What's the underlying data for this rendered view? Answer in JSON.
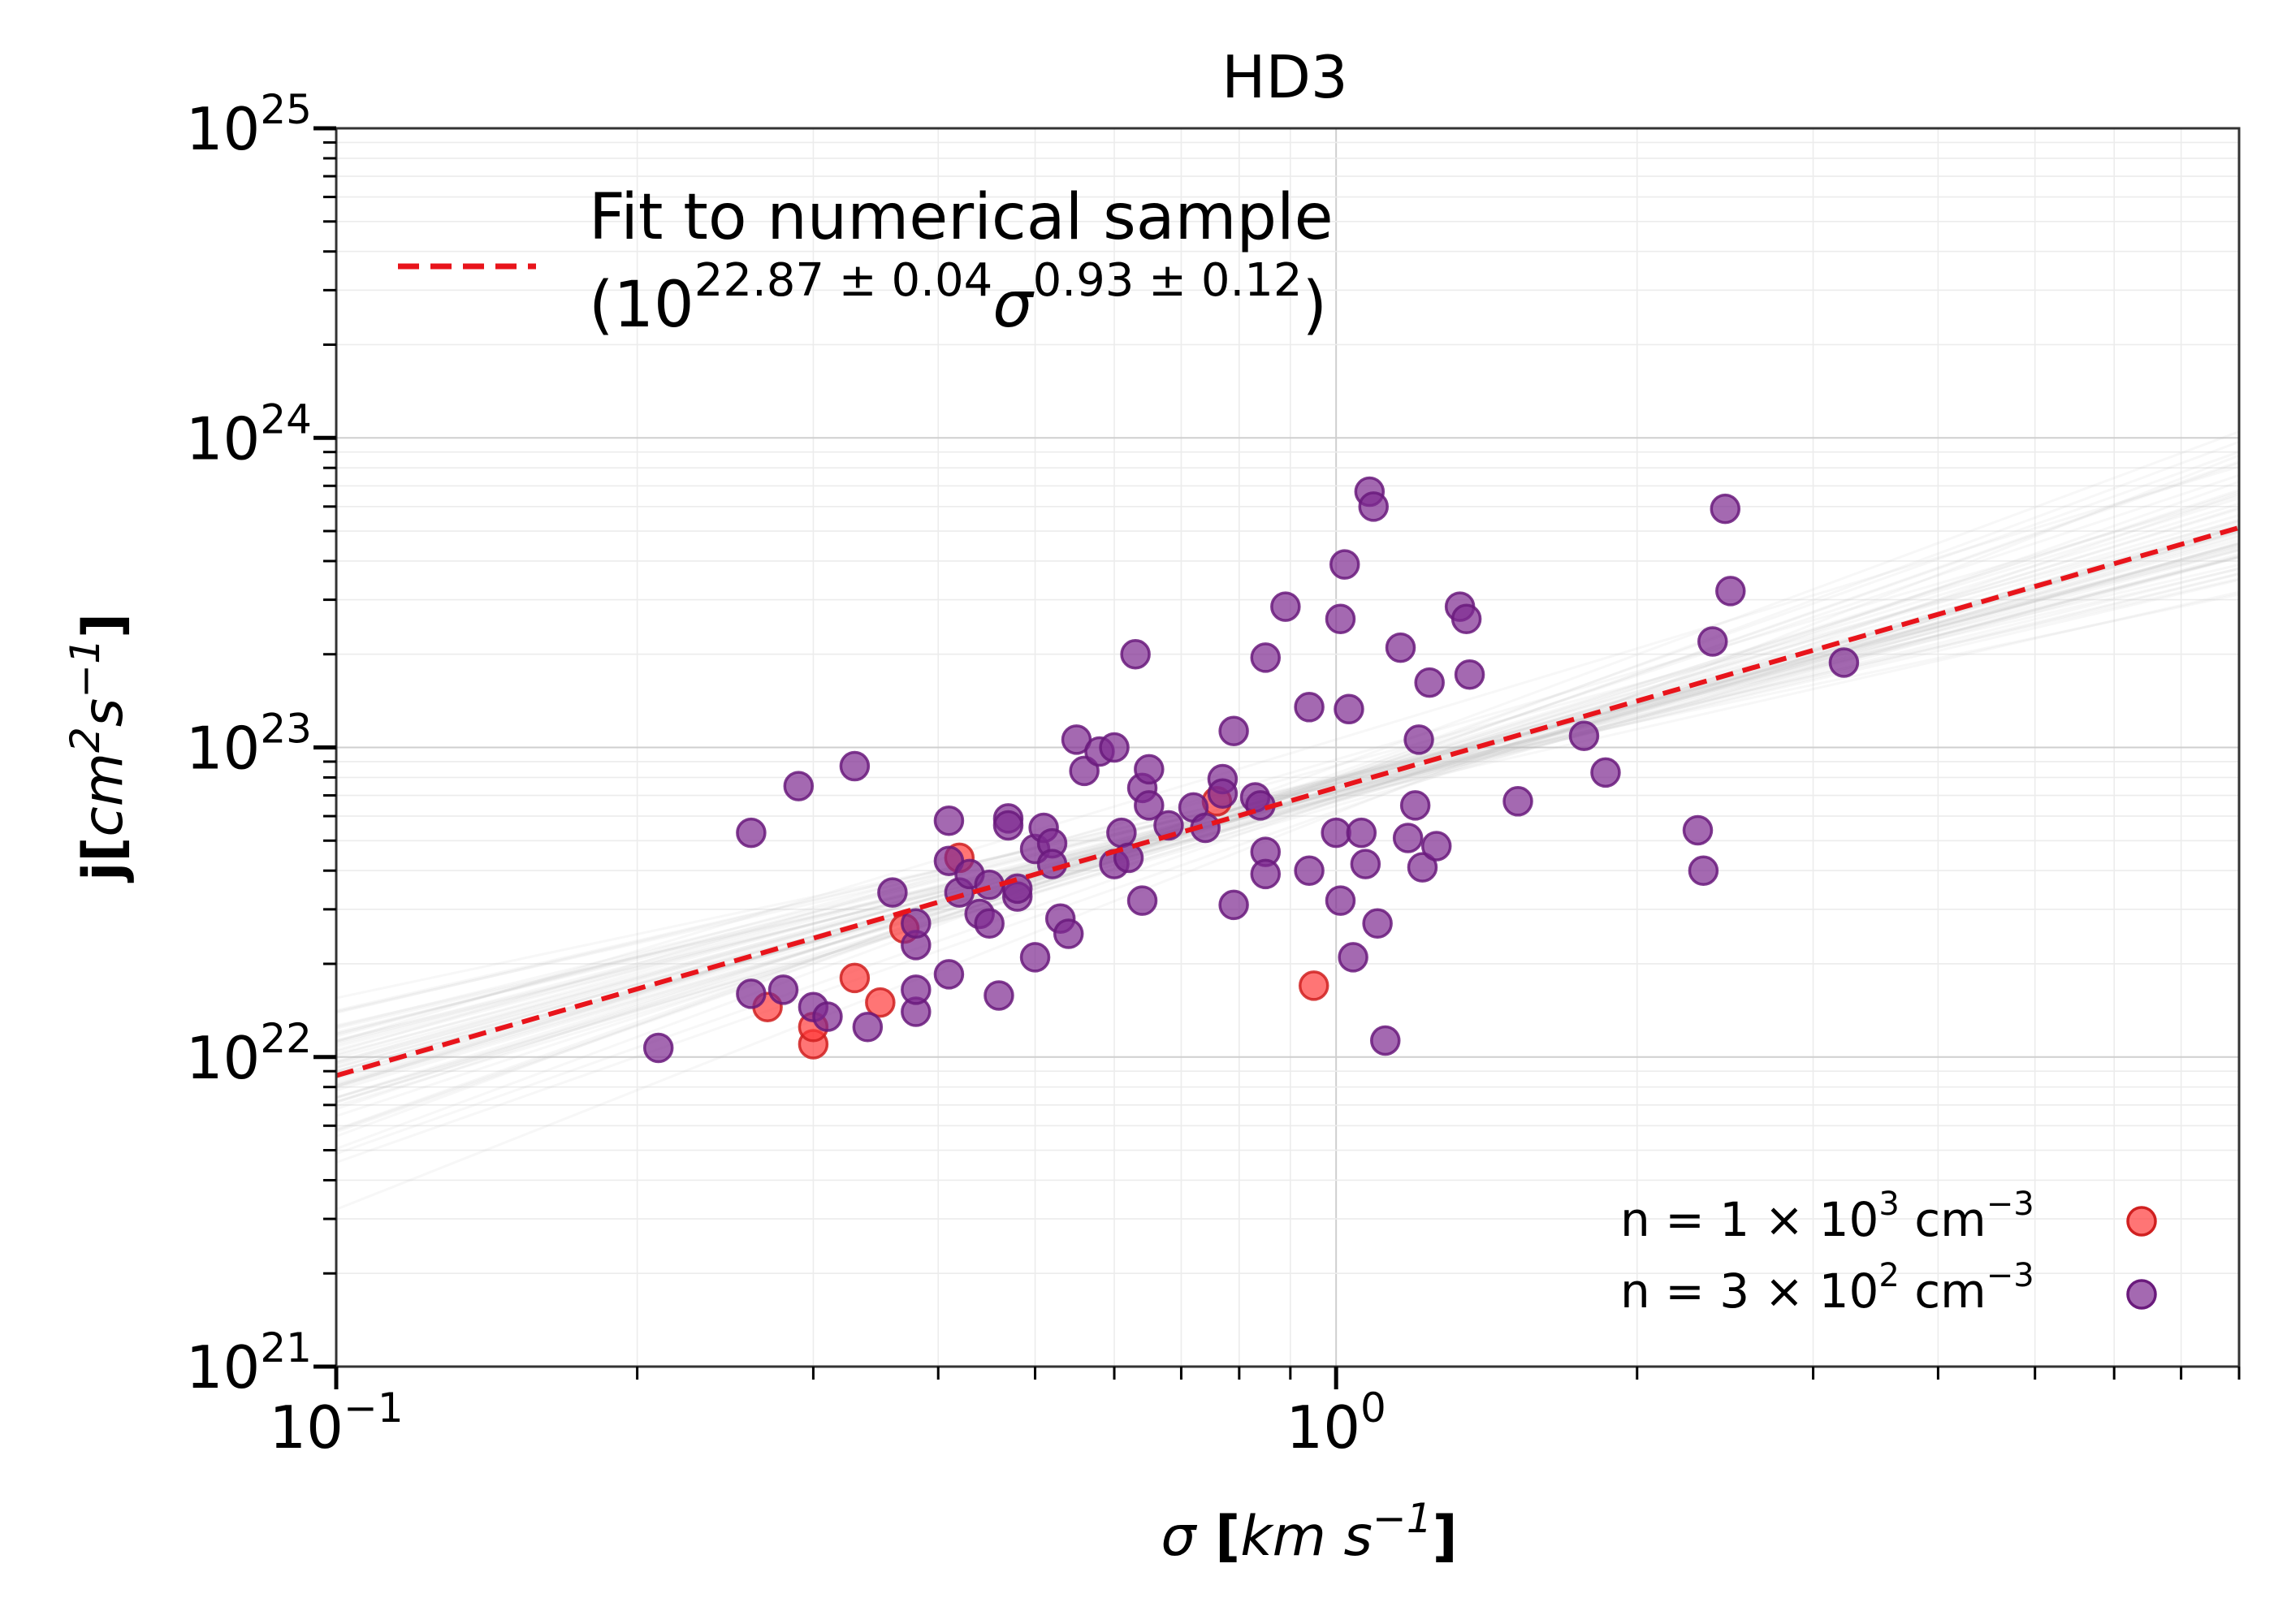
{
  "chart_data": {
    "type": "scatter",
    "title": "HD3",
    "xlabel": "σ [km s⁻¹]",
    "ylabel": "j[cm² s⁻¹]",
    "xscale": "log",
    "yscale": "log",
    "xlim": [
      0.1,
      8.0
    ],
    "ylim": [
      1e+21,
      1e+25
    ],
    "grid": true,
    "x_ticks": [
      {
        "base": "10",
        "exp": "−1",
        "value": 0.1
      },
      {
        "base": "10",
        "exp": "0",
        "value": 1.0
      }
    ],
    "y_ticks": [
      {
        "base": "10",
        "exp": "21",
        "value": 1e+21
      },
      {
        "base": "10",
        "exp": "22",
        "value": 1e+22
      },
      {
        "base": "10",
        "exp": "23",
        "value": 1e+23
      },
      {
        "base": "10",
        "exp": "24",
        "value": 1e+24
      },
      {
        "base": "10",
        "exp": "25",
        "value": 1e+25
      }
    ],
    "fit": {
      "label_line1": "Fit to numerical sample",
      "label_open": "(10",
      "label_exp1": "22.87 ± 0.04",
      "label_sigma": "σ",
      "label_exp2": "0.93 ± 0.12",
      "label_close": ")",
      "log_intercept": 22.87,
      "slope": 0.93,
      "color": "#e8141b",
      "style": "dashed"
    },
    "uncertainty_band": {
      "color": "#bdbdbd",
      "n_lines": 60,
      "log_intercept_spread": 0.04,
      "slope_spread": 0.12
    },
    "series": [
      {
        "name": "n = 1 × 10³ cm⁻³",
        "legend_prefix": "n  = 1 × 10",
        "legend_exp": "3",
        "legend_unit": " cm",
        "legend_unit_exp": "−3",
        "color": "#ff3b3b",
        "edge_color": "#d02020",
        "points": [
          [
            0.27,
            1.45e+22
          ],
          [
            0.3,
            1.1e+22
          ],
          [
            0.3,
            1.25e+22
          ],
          [
            0.33,
            1.8e+22
          ],
          [
            0.35,
            1.5e+22
          ],
          [
            0.37,
            2.6e+22
          ],
          [
            0.42,
            4.4e+22
          ],
          [
            0.76,
            6.7e+22
          ],
          [
            0.95,
            1.7e+22
          ]
        ]
      },
      {
        "name": "n = 3 × 10² cm⁻³",
        "legend_prefix": "n  = 3 × 10",
        "legend_exp": "2",
        "legend_unit": " cm",
        "legend_unit_exp": "−3",
        "color": "#7e2a90",
        "edge_color": "#6a1a7c",
        "points": [
          [
            0.21,
            1.07e+22
          ],
          [
            0.26,
            5.3e+22
          ],
          [
            0.26,
            1.6e+22
          ],
          [
            0.28,
            1.65e+22
          ],
          [
            0.29,
            7.5e+22
          ],
          [
            0.3,
            1.45e+22
          ],
          [
            0.31,
            1.35e+22
          ],
          [
            0.33,
            8.7e+22
          ],
          [
            0.34,
            1.25e+22
          ],
          [
            0.36,
            3.4e+22
          ],
          [
            0.38,
            1.4e+22
          ],
          [
            0.38,
            1.65e+22
          ],
          [
            0.38,
            2.3e+22
          ],
          [
            0.38,
            2.7e+22
          ],
          [
            0.41,
            5.8e+22
          ],
          [
            0.41,
            4.3e+22
          ],
          [
            0.41,
            1.85e+22
          ],
          [
            0.42,
            3.4e+22
          ],
          [
            0.43,
            3.9e+22
          ],
          [
            0.44,
            2.9e+22
          ],
          [
            0.45,
            2.7e+22
          ],
          [
            0.45,
            3.6e+22
          ],
          [
            0.46,
            1.58e+22
          ],
          [
            0.47,
            5.9e+22
          ],
          [
            0.47,
            5.6e+22
          ],
          [
            0.48,
            3.3e+22
          ],
          [
            0.48,
            3.5e+22
          ],
          [
            0.5,
            2.1e+22
          ],
          [
            0.5,
            4.7e+22
          ],
          [
            0.51,
            5.5e+22
          ],
          [
            0.52,
            4.9e+22
          ],
          [
            0.52,
            4.2e+22
          ],
          [
            0.53,
            2.8e+22
          ],
          [
            0.54,
            2.5e+22
          ],
          [
            0.55,
            1.06e+23
          ],
          [
            0.56,
            8.4e+22
          ],
          [
            0.58,
            9.7e+22
          ],
          [
            0.6,
            1e+23
          ],
          [
            0.6,
            4.2e+22
          ],
          [
            0.61,
            5.3e+22
          ],
          [
            0.62,
            4.4e+22
          ],
          [
            0.63,
            2e+23
          ],
          [
            0.64,
            7.4e+22
          ],
          [
            0.64,
            3.2e+22
          ],
          [
            0.65,
            8.5e+22
          ],
          [
            0.65,
            6.5e+22
          ],
          [
            0.68,
            5.6e+22
          ],
          [
            0.72,
            6.4e+22
          ],
          [
            0.74,
            5.5e+22
          ],
          [
            0.77,
            7.9e+22
          ],
          [
            0.77,
            7.1e+22
          ],
          [
            0.79,
            1.13e+23
          ],
          [
            0.79,
            3.1e+22
          ],
          [
            0.83,
            6.9e+22
          ],
          [
            0.84,
            6.5e+22
          ],
          [
            0.85,
            1.95e+23
          ],
          [
            0.85,
            4.6e+22
          ],
          [
            0.85,
            3.9e+22
          ],
          [
            0.89,
            2.85e+23
          ],
          [
            0.94,
            1.35e+23
          ],
          [
            0.94,
            4e+22
          ],
          [
            1.0,
            5.3e+22
          ],
          [
            1.01,
            2.6e+23
          ],
          [
            1.01,
            3.2e+22
          ],
          [
            1.02,
            3.9e+23
          ],
          [
            1.03,
            1.33e+23
          ],
          [
            1.04,
            2.1e+22
          ],
          [
            1.06,
            5.3e+22
          ],
          [
            1.07,
            4.2e+22
          ],
          [
            1.08,
            6.7e+23
          ],
          [
            1.09,
            6e+23
          ],
          [
            1.1,
            2.7e+22
          ],
          [
            1.12,
            1.13e+22
          ],
          [
            1.16,
            2.1e+23
          ],
          [
            1.18,
            5.1e+22
          ],
          [
            1.2,
            6.5e+22
          ],
          [
            1.21,
            1.06e+23
          ],
          [
            1.22,
            4.1e+22
          ],
          [
            1.24,
            1.62e+23
          ],
          [
            1.26,
            4.8e+22
          ],
          [
            1.33,
            2.85e+23
          ],
          [
            1.35,
            2.6e+23
          ],
          [
            1.36,
            1.72e+23
          ],
          [
            1.52,
            6.7e+22
          ],
          [
            1.77,
            1.09e+23
          ],
          [
            1.86,
            8.3e+22
          ],
          [
            2.3,
            5.4e+22
          ],
          [
            2.33,
            4e+22
          ],
          [
            2.38,
            2.2e+23
          ],
          [
            2.45,
            5.9e+23
          ],
          [
            2.48,
            3.2e+23
          ],
          [
            3.22,
            1.88e+23
          ]
        ]
      }
    ]
  }
}
